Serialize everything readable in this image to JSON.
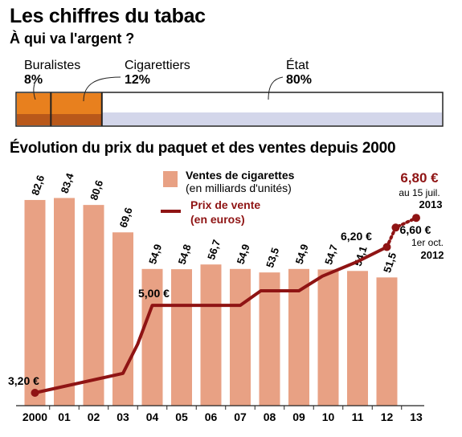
{
  "title": "Les chiffres du tabac",
  "subtitle": "À qui va l'argent ?",
  "share": {
    "items": [
      {
        "name": "Buralistes",
        "pct": "8%",
        "value": 8
      },
      {
        "name": "Cigarettiers",
        "pct": "12%",
        "value": 12
      },
      {
        "name": "État",
        "pct": "80%",
        "value": 80
      }
    ]
  },
  "section_title": "Évolution du prix du paquet et des ventes depuis 2000",
  "legend": {
    "bars_label": "Ventes de cigarettes",
    "bars_unit": "(en milliards d'unités)",
    "line_label": "Prix de vente",
    "line_unit": "(en euros)"
  },
  "price_labels": {
    "start": "3,20 €",
    "p2004": "5,00 €",
    "p2012": "6,20 €",
    "oct": "6,60 €",
    "oct_note1": "1er oct.",
    "oct_note2": "2012",
    "jul": "6,80 €",
    "jul_note1": "au 15 juil.",
    "jul_note2": "2013"
  },
  "colors": {
    "bar": "#e8a184",
    "line": "#8f1414",
    "buralistes": "#e8801e",
    "etat": "#d3d6ea"
  },
  "chart_data": {
    "type": "bar",
    "categories": [
      "2000",
      "01",
      "02",
      "03",
      "04",
      "05",
      "06",
      "07",
      "08",
      "09",
      "10",
      "11",
      "12",
      "13"
    ],
    "series": [
      {
        "name": "Ventes de cigarettes",
        "unit": "milliards d'unités",
        "values": [
          82.6,
          83.4,
          80.6,
          69.6,
          54.9,
          54.8,
          56.7,
          54.9,
          53.5,
          54.9,
          54.7,
          54.1,
          51.5,
          null
        ],
        "labels": [
          "82,6",
          "83,4",
          "80,6",
          "69,6",
          "54,9",
          "54,8",
          "56,7",
          "54,9",
          "53,5",
          "54,9",
          "54,7",
          "54,1",
          "51,5",
          ""
        ]
      },
      {
        "name": "Prix de vente",
        "unit": "euros",
        "type": "line",
        "points": [
          {
            "x": 2000.0,
            "y": 3.2
          },
          {
            "x": 2003.0,
            "y": 3.6
          },
          {
            "x": 2003.5,
            "y": 4.2
          },
          {
            "x": 2004.0,
            "y": 5.0
          },
          {
            "x": 2007.0,
            "y": 5.0
          },
          {
            "x": 2007.7,
            "y": 5.3
          },
          {
            "x": 2009.0,
            "y": 5.3
          },
          {
            "x": 2009.8,
            "y": 5.6
          },
          {
            "x": 2011.0,
            "y": 5.9
          },
          {
            "x": 2012.0,
            "y": 6.2
          },
          {
            "x": 2012.3,
            "y": 6.6
          },
          {
            "x": 2013.0,
            "y": 6.8
          }
        ]
      }
    ]
  }
}
